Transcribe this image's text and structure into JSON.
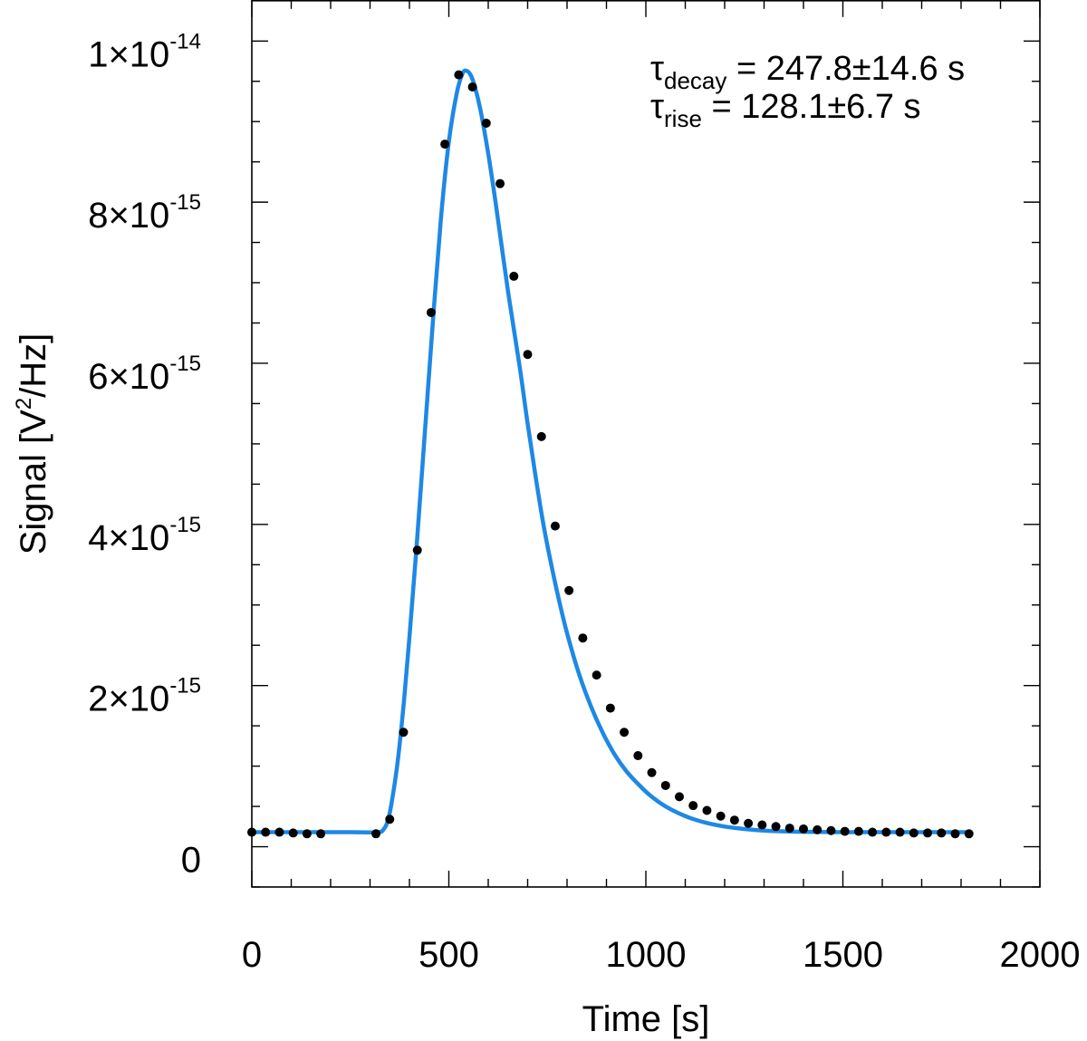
{
  "chart_data": {
    "type": "scatter",
    "xlabel": "Time [s]",
    "ylabel": {
      "prefix": "Signal [V",
      "sup": "2",
      "suffix": "/Hz]"
    },
    "xlim": [
      0,
      2000
    ],
    "ylim": [
      -5e-16,
      1.05e-14
    ],
    "x_ticks": [
      {
        "value": 0,
        "label": "0"
      },
      {
        "value": 500,
        "label": "500"
      },
      {
        "value": 1000,
        "label": "1000"
      },
      {
        "value": 1500,
        "label": "1500"
      },
      {
        "value": 2000,
        "label": "2000"
      }
    ],
    "y_ticks": [
      {
        "value": 0,
        "mantissa": "0",
        "exponent": ""
      },
      {
        "value": 2e-15,
        "mantissa": "2×10",
        "exponent": "-15"
      },
      {
        "value": 4e-15,
        "mantissa": "4×10",
        "exponent": "-15"
      },
      {
        "value": 6e-15,
        "mantissa": "6×10",
        "exponent": "-15"
      },
      {
        "value": 8e-15,
        "mantissa": "8×10",
        "exponent": "-15"
      },
      {
        "value": 1e-14,
        "mantissa": "1×10",
        "exponent": "-14"
      }
    ],
    "x_minor_step": 100,
    "y_minor_step": 5e-16,
    "annotations": [
      {
        "symbol": "τ",
        "sub": "decay",
        "text": " = 247.8±14.6 s"
      },
      {
        "symbol": "τ",
        "sub": "rise",
        "text": " = 128.1±6.7 s"
      }
    ],
    "series": [
      {
        "kind": "points",
        "color": "#000000",
        "x": [
          0,
          35,
          70,
          105,
          140,
          175,
          315,
          350,
          385,
          420,
          455,
          490,
          525,
          560,
          595,
          630,
          665,
          700,
          735,
          770,
          805,
          840,
          875,
          910,
          945,
          980,
          1015,
          1050,
          1085,
          1120,
          1155,
          1190,
          1225,
          1260,
          1295,
          1330,
          1365,
          1400,
          1435,
          1470,
          1505,
          1540,
          1575,
          1610,
          1645,
          1680,
          1715,
          1750,
          1785,
          1820
        ],
        "y": [
          1.8e-16,
          1.8e-16,
          1.8e-16,
          1.7e-16,
          1.6e-16,
          1.6e-16,
          1.6e-16,
          3.4e-16,
          1.42e-15,
          3.68e-15,
          6.63e-15,
          8.72e-15,
          9.58e-15,
          9.43e-15,
          8.98e-15,
          8.23e-15,
          7.08e-15,
          6.11e-15,
          5.09e-15,
          3.98e-15,
          3.18e-15,
          2.59e-15,
          2.13e-15,
          1.72e-15,
          1.42e-15,
          1.13e-15,
          9.2e-16,
          7.6e-16,
          6.2e-16,
          5.1e-16,
          4.5e-16,
          3.8e-16,
          3.3e-16,
          2.9e-16,
          2.7e-16,
          2.5e-16,
          2.3e-16,
          2.2e-16,
          2.1e-16,
          2e-16,
          1.9e-16,
          1.9e-16,
          1.8e-16,
          1.8e-16,
          1.8e-16,
          1.7e-16,
          1.7e-16,
          1.7e-16,
          1.6e-16,
          1.6e-16
        ]
      },
      {
        "kind": "fit",
        "color": "#1e88e5",
        "x": [
          0,
          250,
          320,
          335,
          345,
          355,
          370,
          385,
          400,
          420,
          440,
          460,
          480,
          500,
          520,
          535,
          545,
          555,
          565,
          580,
          600,
          620,
          650,
          680,
          700,
          720,
          740,
          760,
          780,
          800,
          830,
          860,
          890,
          920,
          950,
          980,
          1010,
          1050,
          1100,
          1150,
          1200,
          1250,
          1300,
          1350,
          1400,
          1500,
          1600,
          1700,
          1820
        ],
        "y": [
          1.8e-16,
          1.8e-16,
          1.8e-16,
          2.2e-16,
          3.2e-16,
          5.5e-16,
          1.05e-15,
          1.75e-15,
          2.6e-15,
          3.85e-15,
          5.2e-15,
          6.55e-15,
          7.8e-15,
          8.75e-15,
          9.35e-15,
          9.6e-15,
          9.63e-15,
          9.58e-15,
          9.45e-15,
          9.15e-15,
          8.6e-15,
          7.95e-15,
          6.9e-15,
          5.95e-15,
          5.25e-15,
          4.6e-15,
          4e-15,
          3.5e-15,
          3.05e-15,
          2.65e-15,
          2.15e-15,
          1.75e-15,
          1.42e-15,
          1.15e-15,
          9.4e-16,
          7.8e-16,
          6.4e-16,
          5e-16,
          3.8e-16,
          3e-16,
          2.5e-16,
          2.2e-16,
          2e-16,
          1.9e-16,
          1.85e-16,
          1.8e-16,
          1.8e-16,
          1.8e-16,
          1.8e-16
        ]
      }
    ]
  }
}
